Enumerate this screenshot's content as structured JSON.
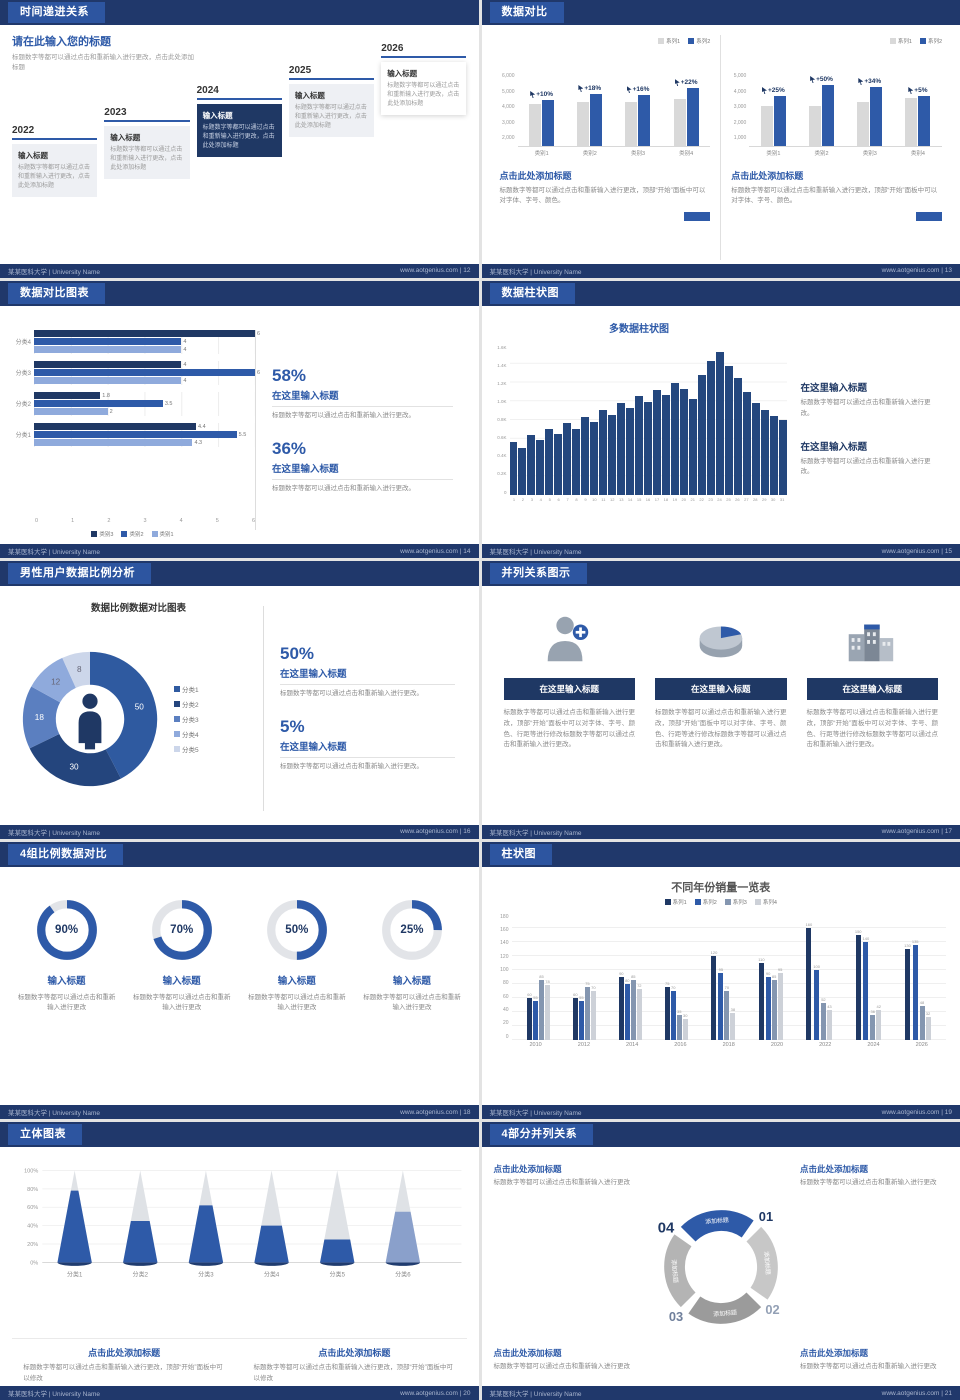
{
  "footer": {
    "left": "某某医科大学 | University Name",
    "site": "www.aotgenius.com",
    "sep": " | "
  },
  "slides": {
    "s12": {
      "header": "时间递进关系",
      "page_no": "12",
      "heading": "请在此输入您的标题",
      "subtext": "标题数字等都可以通过点击和重新输入进行更改，点击此处添加标题",
      "items": [
        {
          "year": "2022",
          "title": "输入标题",
          "body": "标题数字等都可以通过点击和重新输入进行更改，点击此处添加标题",
          "style": "gray"
        },
        {
          "year": "2023",
          "title": "输入标题",
          "body": "标题数字等都可以通过点击和重新输入进行更改，点击此处添加标题",
          "style": "gray"
        },
        {
          "year": "2024",
          "title": "输入标题",
          "body": "标题数字等都可以通过点击和重新输入进行更改，点击此处添加标题",
          "style": "dark"
        },
        {
          "year": "2025",
          "title": "输入标题",
          "body": "标题数字等都可以通过点击和重新输入进行更改，点击此处添加标题",
          "style": "gray"
        },
        {
          "year": "2026",
          "title": "输入标题",
          "body": "标题数字等都可以通过点击和重新输入进行更改，点击此处添加标题",
          "style": "light"
        }
      ]
    },
    "s13": {
      "header": "数据对比",
      "page_no": "13",
      "panels": [
        {
          "legend": [
            {
              "label": "系列1",
              "color": "#d9d9d9"
            },
            {
              "label": "系列2",
              "color": "#2e5aa8"
            }
          ],
          "chart": {
            "type": "bar",
            "categories": [
              "类别1",
              "类别2",
              "类别3",
              "类别4"
            ],
            "series": [
              {
                "name": "系列1",
                "values": [
                  3800,
                  4000,
                  4000,
                  4300
                ]
              },
              {
                "name": "系列2",
                "values": [
                  4200,
                  4750,
                  4650,
                  5250
                ]
              }
            ],
            "annotations": [
              "+10%",
              "+18%",
              "+16%",
              "+22%"
            ],
            "y_ticks": [
              "6,000",
              "5,000",
              "4,000",
              "3,000",
              "2,000"
            ],
            "ymax": 6000
          },
          "heading": "点击此处添加标题",
          "body": "标题数字等都可以通过点击和重新输入进行更改，顶部“开始”面板中可以对字体、字号、颜色。"
        },
        {
          "legend": [
            {
              "label": "系列1",
              "color": "#d9d9d9"
            },
            {
              "label": "系列2",
              "color": "#2e5aa8"
            }
          ],
          "chart": {
            "type": "bar",
            "categories": [
              "类别1",
              "类别2",
              "类别3",
              "类别4"
            ],
            "series": [
              {
                "name": "系列1",
                "values": [
                  3000,
                  3050,
                  3300,
                  3600
                ]
              },
              {
                "name": "系列2",
                "values": [
                  3750,
                  4600,
                  4450,
                  3800
                ]
              }
            ],
            "annotations": [
              "+25%",
              "+50%",
              "+34%",
              "+5%"
            ],
            "y_ticks": [
              "5,000",
              "4,000",
              "3,000",
              "2,000",
              "1,000"
            ],
            "ymax": 5000
          },
          "heading": "点击此处添加标题",
          "body": "标题数字等都可以通过点击和重新输入进行更改，顶部“开始”面板中可以对字体、字号、颜色。"
        }
      ]
    },
    "s14": {
      "header": "数据对比图表",
      "page_no": "14",
      "chart": {
        "type": "bar",
        "orientation": "horizontal",
        "categories": [
          "分类4",
          "分类3",
          "分类2",
          "分类1"
        ],
        "series_names": [
          "类别3",
          "类别2",
          "类别1"
        ],
        "series_colors": [
          "#1f3864",
          "#2e5aa8",
          "#8faadc"
        ],
        "values": [
          [
            6,
            4,
            4
          ],
          [
            4,
            6,
            4
          ],
          [
            1.8,
            3.5,
            2
          ],
          [
            4.4,
            5.5,
            4.3
          ]
        ],
        "x_ticks": [
          "0",
          "1",
          "2",
          "3",
          "4",
          "5",
          "6"
        ],
        "xmax": 6
      },
      "legend": [
        {
          "label": "类别3",
          "color": "#1f3864"
        },
        {
          "label": "类别2",
          "color": "#2e5aa8"
        },
        {
          "label": "类别1",
          "color": "#8faadc"
        }
      ],
      "stats": [
        {
          "value": "58%",
          "title": "在这里输入标题",
          "body": "标题数字等都可以通过点击和重新输入进行更改。"
        },
        {
          "value": "36%",
          "title": "在这里输入标题",
          "body": "标题数字等都可以通过点击和重新输入进行更改。"
        }
      ]
    },
    "s15": {
      "header": "数据柱状图",
      "page_no": "15",
      "chart_title": "多数据柱状图",
      "chart": {
        "type": "bar",
        "x_labels": [
          "1",
          "2",
          "3",
          "4",
          "5",
          "6",
          "7",
          "8",
          "9",
          "10",
          "11",
          "12",
          "13",
          "14",
          "15",
          "16",
          "17",
          "18",
          "19",
          "20",
          "21",
          "22",
          "23",
          "24",
          "25",
          "26",
          "27",
          "28",
          "29",
          "30",
          "31"
        ],
        "values": [
          560,
          500,
          640,
          580,
          700,
          650,
          760,
          700,
          830,
          780,
          900,
          850,
          980,
          920,
          1050,
          990,
          1120,
          1060,
          1190,
          1130,
          1020,
          1280,
          1430,
          1520,
          1370,
          1240,
          1100,
          980,
          900,
          840,
          800
        ],
        "y_ticks": [
          "1.6K",
          "1.4K",
          "1.2K",
          "1.0K",
          "0.8K",
          "0.6K",
          "0.4K",
          "0.2K",
          "0"
        ],
        "ymax": 1600
      },
      "blocks": [
        {
          "title": "在这里输入标题",
          "body": "标题数字等都可以通过点击和重新输入进行更改。"
        },
        {
          "title": "在这里输入标题",
          "body": "标题数字等都可以通过点击和重新输入进行更改。"
        }
      ]
    },
    "s16": {
      "header": "男性用户数据比例分析",
      "page_no": "16",
      "chart_title": "数据比例数据对比图表",
      "chart": {
        "type": "pie",
        "labels": [
          "分类1",
          "分类2",
          "分类3",
          "分类4",
          "分类5"
        ],
        "values": [
          50,
          30,
          18,
          12,
          8
        ],
        "colors": [
          "#2f5aa0",
          "#24457d",
          "#5b7fc0",
          "#8faadc",
          "#ccd6ea"
        ]
      },
      "stats": [
        {
          "value": "50%",
          "title": "在这里输入标题",
          "body": "标题数字等都可以通过点击和重新输入进行更改。"
        },
        {
          "value": "5%",
          "title": "在这里输入标题",
          "body": "标题数字等都可以通过点击和重新输入进行更改。"
        }
      ]
    },
    "s17": {
      "header": "并列关系图示",
      "page_no": "17",
      "columns": [
        {
          "icon": "nurse-icon",
          "button": "在这里输入标题",
          "body": "标题数字等都可以通过点击和重新输入进行更改，顶部“开始”面板中可以对字体、字号、颜色、行距等进行修改标题数字等都可以通过点击和重新输入进行更改。"
        },
        {
          "icon": "pie-3d-icon",
          "button": "在这里输入标题",
          "body": "标题数字等都可以通过点击和重新输入进行更改，顶部“开始”面板中可以对字体、字号、颜色、行距等进行修改标题数字等都可以通过点击和重新输入进行更改。"
        },
        {
          "icon": "building-icon",
          "button": "在这里输入标题",
          "body": "标题数字等都可以通过点击和重新输入进行更改，顶部“开始”面板中可以对字体、字号、颜色、行距等进行修改标题数字等都可以通过点击和重新输入进行更改。"
        }
      ]
    },
    "s18": {
      "header": "4组比例数据对比",
      "page_no": "18",
      "rings": [
        {
          "percent": "90%",
          "value": 90,
          "title": "输入标题",
          "body": "标题数字等都可以通过点击和重新输入进行更改"
        },
        {
          "percent": "70%",
          "value": 70,
          "title": "输入标题",
          "body": "标题数字等都可以通过点击和重新输入进行更改"
        },
        {
          "percent": "50%",
          "value": 50,
          "title": "输入标题",
          "body": "标题数字等都可以通过点击和重新输入进行更改"
        },
        {
          "percent": "25%",
          "value": 25,
          "title": "输入标题",
          "body": "标题数字等都可以通过点击和重新输入进行更改"
        }
      ]
    },
    "s19": {
      "header": "柱状图",
      "page_no": "19",
      "chart_title": "不同年份销量一览表",
      "chart": {
        "type": "bar",
        "categories": [
          "2010",
          "2012",
          "2014",
          "2016",
          "2018",
          "2020",
          "2022",
          "2024",
          "2026"
        ],
        "series": [
          {
            "name": "系列1",
            "color": "#1f3864",
            "values": [
              60,
              60,
              90,
              75,
              120,
              110,
              160,
              150,
              130
            ]
          },
          {
            "name": "系列2",
            "color": "#2e5aa8",
            "values": [
              55,
              55,
              80,
              70,
              95,
              90,
              100,
              140,
              135
            ]
          },
          {
            "name": "系列3",
            "color": "#8496b0",
            "values": [
              85,
              75,
              85,
              35,
              70,
              85,
              52,
              36,
              48
            ]
          },
          {
            "name": "系列4",
            "color": "#cdd1d8",
            "values": [
              78,
              70,
              72,
              30,
              38,
              95,
              43,
              42,
              32
            ]
          }
        ],
        "y_ticks": [
          "180",
          "160",
          "140",
          "120",
          "100",
          "80",
          "60",
          "40",
          "20",
          "0"
        ],
        "ymax": 180
      }
    },
    "s20": {
      "header": "立体图表",
      "page_no": "20",
      "chart": {
        "type": "bar",
        "style": "cone",
        "categories": [
          "分类1",
          "分类2",
          "分类3",
          "分类4",
          "分类5",
          "分类6"
        ],
        "values": [
          78,
          45,
          62,
          40,
          25,
          55
        ],
        "y_ticks": [
          "100%",
          "80%",
          "60%",
          "40%",
          "20%",
          "0%"
        ]
      },
      "blocks": [
        {
          "title": "点击此处添加标题",
          "body": "标题数字等都可以通过点击和重新输入进行更改，顶部“开始”面板中可以修改"
        },
        {
          "title": "点击此处添加标题",
          "body": "标题数字等都可以通过点击和重新输入进行更改，顶部“开始”面板中可以修改"
        }
      ]
    },
    "s21": {
      "header": "4部分并列关系",
      "page_no": "21",
      "segments": [
        {
          "number": "01",
          "label": "添加标题"
        },
        {
          "number": "02",
          "label": "添加标题"
        },
        {
          "number": "03",
          "label": "添加标题"
        },
        {
          "number": "04",
          "label": "添加标题"
        }
      ],
      "blocks": [
        {
          "title": "点击此处添加标题",
          "body": "标题数字等都可以通过点击和重新输入进行更改"
        },
        {
          "title": "点击此处添加标题",
          "body": "标题数字等都可以通过点击和重新输入进行更改"
        },
        {
          "title": "点击此处添加标题",
          "body": "标题数字等都可以通过点击和重新输入进行更改"
        },
        {
          "title": "点击此处添加标题",
          "body": "标题数字等都可以通过点击和重新输入进行更改"
        }
      ]
    }
  }
}
